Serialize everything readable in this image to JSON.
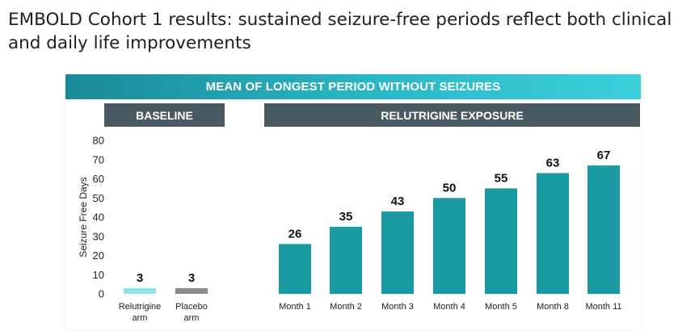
{
  "title": "EMBOLD Cohort 1 results: sustained seizure-free periods reflect both clinical and daily life improvements",
  "colors": {
    "header_start": "#1a8a97",
    "header_end": "#3ccfdc",
    "section_bar": "#4a5a63",
    "relutrigine_bar": "#1a9ba4",
    "baseline_relutrigine": "#8fe3ec",
    "baseline_placebo": "#8c8c8c"
  },
  "chart_data": {
    "type": "bar",
    "title": "MEAN OF LONGEST PERIOD WITHOUT SEIZURES",
    "ylabel": "Seizure Free Days",
    "xlabel": "",
    "ylim": [
      0,
      80
    ],
    "yticks": [
      0,
      10,
      20,
      30,
      40,
      50,
      60,
      70,
      80
    ],
    "grid": false,
    "sections": [
      {
        "label": "BASELINE"
      },
      {
        "label": "RELUTRIGINE EXPOSURE"
      }
    ],
    "categories": [
      [
        "Relutrigine",
        "arm"
      ],
      [
        "Placebo",
        "arm"
      ],
      [
        "Month 1"
      ],
      [
        "Month 2"
      ],
      [
        "Month 3"
      ],
      [
        "Month 4"
      ],
      [
        "Month 5"
      ],
      [
        "Month 8"
      ],
      [
        "Month 11"
      ]
    ],
    "values": [
      3,
      3,
      26,
      35,
      43,
      50,
      55,
      63,
      67
    ],
    "data_labels": [
      "3",
      "3",
      "26",
      "35",
      "43",
      "50",
      "55",
      "63",
      "67"
    ],
    "section_of_bar": [
      0,
      0,
      1,
      1,
      1,
      1,
      1,
      1,
      1
    ]
  }
}
